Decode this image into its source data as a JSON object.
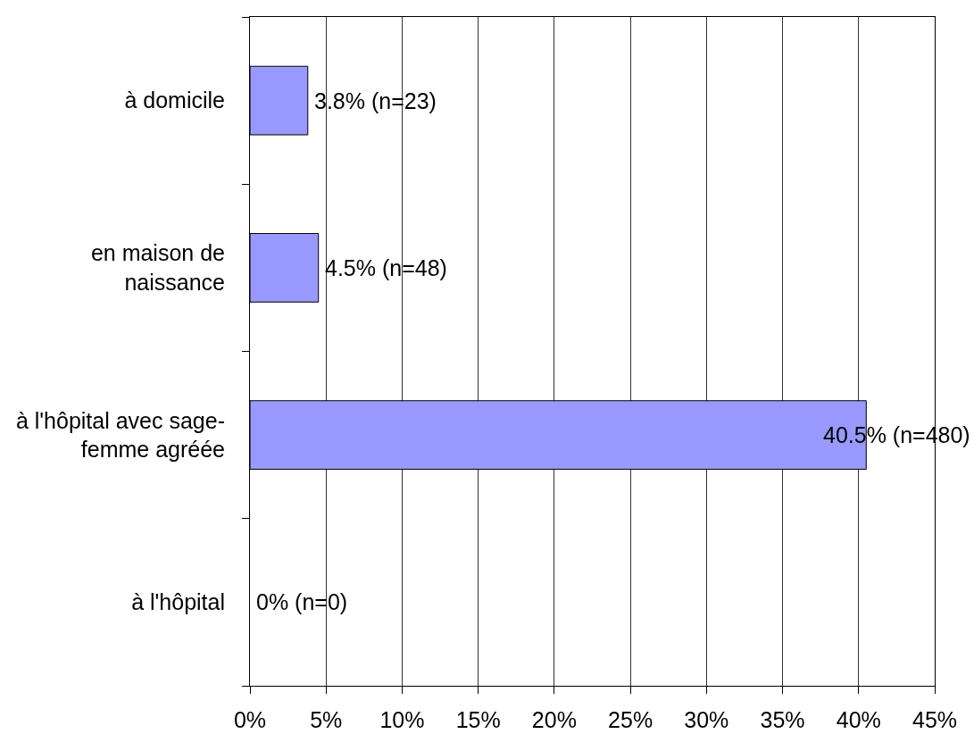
{
  "chart_data": {
    "type": "bar",
    "orientation": "horizontal",
    "categories": [
      "à domicile",
      "en maison de naissance",
      "à l'hôpital avec sage-femme agréée",
      "à l'hôpital"
    ],
    "values": [
      3.8,
      4.5,
      40.5,
      0
    ],
    "value_labels": [
      "3.8% (n=23)",
      "4.5% (n=48)",
      "40.5% (n=480)",
      "0% (n=0)"
    ],
    "color": "#9999ff",
    "xlim": [
      0,
      45
    ],
    "xticks": [
      {
        "value": 0,
        "label": "0%"
      },
      {
        "value": 5,
        "label": "5%"
      },
      {
        "value": 10,
        "label": "10%"
      },
      {
        "value": 15,
        "label": "15%"
      },
      {
        "value": 20,
        "label": "20%"
      },
      {
        "value": 25,
        "label": "25%"
      },
      {
        "value": 30,
        "label": "30%"
      },
      {
        "value": 35,
        "label": "35%"
      },
      {
        "value": 40,
        "label": "40%"
      },
      {
        "value": 45,
        "label": "45%"
      }
    ],
    "grid": "x"
  }
}
